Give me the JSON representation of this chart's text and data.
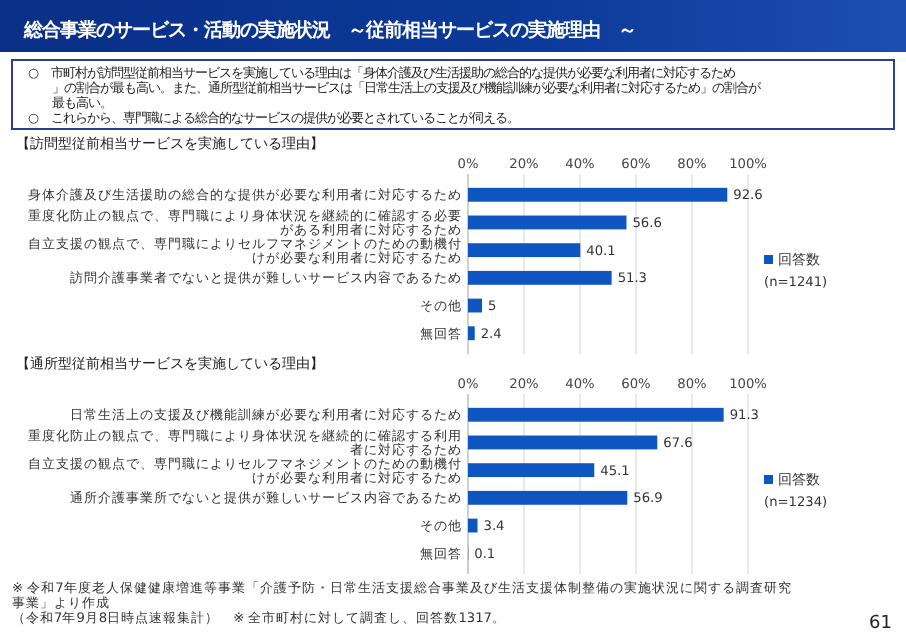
{
  "chart_data": [
    {
      "type": "other",
      "title": "総合事業のサービス・活動の実施状況　～従前相当サービスの実施理由　～",
      "annotations": [
        "○　市町村が訪問型従前相当サービスを実施している理由は「身体介護及び生活援助の総合的な提供が必要な利用者に対応するため」の割合が最も高い。また、通所型従前相当サービスは「日常生活上の支援及び機能訓練が必要な利用者に対応するため」の割合が最も高い。",
        "○　これらから、専門職による総合的なサービスの提供が必要とされていることが伺える。"
      ]
    },
    {
      "type": "bar",
      "orientation": "horizontal",
      "title": "【訪問型従前相当サービスを実施している理由】",
      "categories": [
        "身体介護及び生活援助の総合的な提供が必要な利用者に対応するため",
        "重度化防止の観点で、専門職により身体状況を継続的に確認する必要がある利用者に対応するため",
        "自立支援の観点で、専門職によりセルフマネジメントのための動機付けが必要な利用者に対応するため",
        "訪問介護事業者でないと提供が難しいサービス内容であるため",
        "その他",
        "無回答"
      ],
      "series": [
        {
          "name": "回答数",
          "color": "#0f55c0",
          "values": [
            92.6,
            56.6,
            40.1,
            51.3,
            5.0,
            2.4
          ]
        }
      ],
      "xlim": [
        0,
        100
      ],
      "xticks": [
        {
          "value": 0,
          "label": "0%"
        },
        {
          "value": 20,
          "label": "20%"
        },
        {
          "value": 40,
          "label": "40%"
        },
        {
          "value": 60,
          "label": "60%"
        },
        {
          "value": 80,
          "label": "80%"
        },
        {
          "value": 100,
          "label": "100%"
        }
      ],
      "grid": "x",
      "legend": "right",
      "data_labels": true,
      "annotations": [
        "(n=1241)"
      ]
    },
    {
      "type": "bar",
      "orientation": "horizontal",
      "title": "【通所型従前相当サービスを実施している理由】",
      "categories": [
        "日常生活上の支援及び機能訓練が必要な利用者に対応するため",
        "重度化防止の観点で、専門職により身体状況を継続的に確認する利用者に対応するため",
        "自立支援の観点で、専門職によりセルフマネジメントのための動機付けが必要な利用者に対応するため",
        "通所介護事業所でないと提供が難しいサービス内容であるため",
        "その他",
        "無回答"
      ],
      "series": [
        {
          "name": "回答数",
          "color": "#0f55c0",
          "values": [
            91.3,
            67.6,
            45.1,
            56.9,
            3.4,
            0.1
          ]
        }
      ],
      "xlim": [
        0,
        100
      ],
      "xticks": [
        {
          "value": 0,
          "label": "0%"
        },
        {
          "value": 20,
          "label": "20%"
        },
        {
          "value": 40,
          "label": "40%"
        },
        {
          "value": 60,
          "label": "60%"
        },
        {
          "value": 80,
          "label": "80%"
        },
        {
          "value": 100,
          "label": "100%"
        }
      ],
      "grid": "x",
      "legend": "right",
      "data_labels": true,
      "annotations": [
        "(n=1234)",
        "※ 令和7年度老人保健健康増進等事業「介護予防・日常生活支援総合事業及び生活支援体制整備の実施状況に関する調査研究事業」より作成",
        "（令和7年9月8日時点速報集計）　※ 全市町村に対して調査し、回答数1317。",
        "61"
      ]
    }
  ]
}
